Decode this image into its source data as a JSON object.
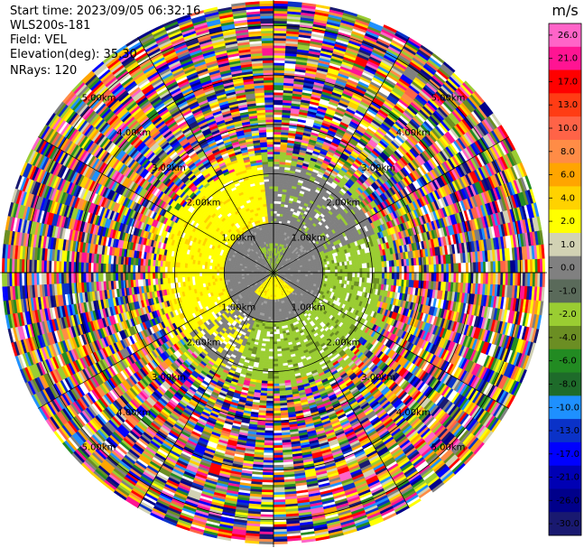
{
  "header": {
    "start_time": "Start time: 2023/09/05 06:32:16",
    "instrument": "WLS200s-181",
    "field": "Field: VEL",
    "elevation": "Elevation(deg): 35.30",
    "nrays": "NRays: 120"
  },
  "chart_data": {
    "type": "heatmap",
    "projection": "polar-ppi",
    "range_unit": "km",
    "max_range_km": 5.5,
    "gate_spacing_km": 0.05,
    "ray_count": 120,
    "range_rings": [
      {
        "km": 1,
        "label": "1.00km"
      },
      {
        "km": 2,
        "label": "2.00km"
      },
      {
        "km": 3,
        "label": "3.00km"
      },
      {
        "km": 4,
        "label": "4.00km"
      },
      {
        "km": 5,
        "label": "5.00km"
      }
    ],
    "spokes_deg": [
      0,
      30,
      60,
      90,
      120,
      150,
      180,
      210,
      240,
      270,
      300,
      330
    ],
    "regions": [
      {
        "name": "near-field approaching",
        "range_km": [
          0,
          1.4
        ],
        "velocity_ms": -1.0
      },
      {
        "name": "yellow receding arc",
        "range_km": [
          0.2,
          2.2
        ],
        "velocity_ms": 2.0
      },
      {
        "name": "green approaching band",
        "range_km": [
          1.0,
          2.3
        ],
        "velocity_ms": -3.0
      },
      {
        "name": "far-field noise",
        "range_km": [
          2.2,
          5.5
        ],
        "velocity_ms": "random"
      }
    ],
    "colorbar": {
      "unit": "m/s",
      "ticks": [
        "26.0",
        "21.0",
        "17.0",
        "13.0",
        "10.0",
        "8.0",
        "6.0",
        "4.0",
        "2.0",
        "1.0",
        "0.0",
        "-1.0",
        "-2.0",
        "-4.0",
        "-6.0",
        "-8.0",
        "-10.0",
        "-13.0",
        "-17.0",
        "-21.0",
        "-26.0",
        "-30.0"
      ],
      "bands": [
        "#ff64c8",
        "#ff1493",
        "#ff0000",
        "#ff3c14",
        "#ff6347",
        "#ff8c46",
        "#ffa500",
        "#ffd200",
        "#ffff00",
        "#d2d2b4",
        "#808080",
        "#5a6a5a",
        "#9acd32",
        "#6b8e23",
        "#228b22",
        "#1e6b2a",
        "#1e90ff",
        "#0a32c8",
        "#0000ff",
        "#0000b4",
        "#00008b",
        "#191970"
      ]
    }
  }
}
